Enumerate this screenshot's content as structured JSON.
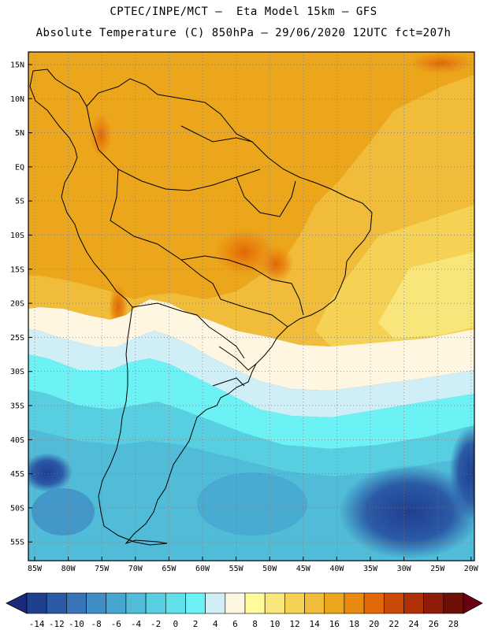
{
  "header": {
    "line1": "CPTEC/INPE/MCT –  Eta Model 15km – GFS",
    "line2": "Absolute Temperature (C) 850hPa – 29/06/2020 12UTC fct=207h"
  },
  "map": {
    "lat_labels": [
      "15N",
      "10N",
      "5N",
      "EQ",
      "5S",
      "10S",
      "15S",
      "20S",
      "25S",
      "30S",
      "35S",
      "40S",
      "45S",
      "50S",
      "55S"
    ],
    "lon_labels": [
      "85W",
      "80W",
      "75W",
      "70W",
      "65W",
      "60W",
      "55W",
      "50W",
      "45W",
      "40W",
      "35W",
      "30W",
      "25W",
      "20W"
    ],
    "field_summary": "850hPa temperature over South America"
  },
  "colorbar": {
    "labels": [
      "-14",
      "-12",
      "-10",
      "-8",
      "-6",
      "-4",
      "-2",
      "0",
      "2",
      "4",
      "6",
      "8",
      "10",
      "12",
      "14",
      "16",
      "18",
      "20",
      "22",
      "24",
      "26",
      "28"
    ],
    "colors": [
      "#1f3f8f",
      "#2b5aa6",
      "#3a74b8",
      "#3f8ec6",
      "#46a6cf",
      "#50bcd8",
      "#58cfe0",
      "#62e0ea",
      "#6cf2f4",
      "#cfeef6",
      "#fff6e2",
      "#fffa9a",
      "#f8e67a",
      "#f6d254",
      "#f0bc3a",
      "#eca61c",
      "#e98a10",
      "#e06808",
      "#cc4a08",
      "#b03008",
      "#8e1c08",
      "#6e1008"
    ],
    "low_arrow_color": "#1a2a78",
    "high_arrow_color": "#6a0010"
  }
}
